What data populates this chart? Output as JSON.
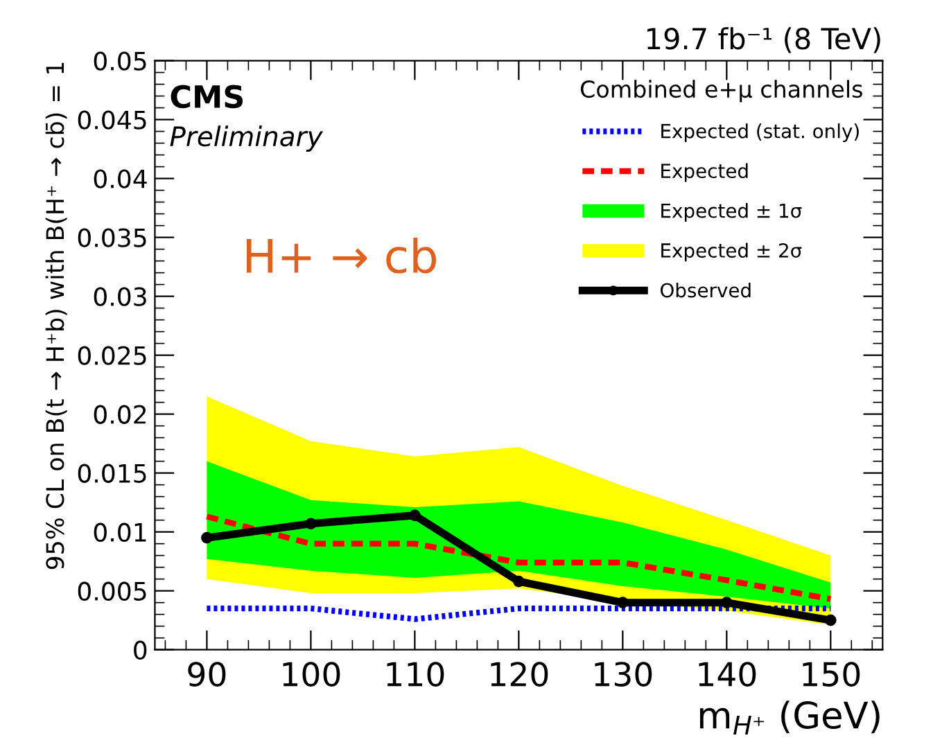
{
  "chart_data": {
    "type": "line",
    "title": "19.7 fb⁻¹ (8 TeV)",
    "xlabel": "m$_{H⁺}$ (GeV)",
    "ylabel": "95% CL on B(t → H⁺b) with B(H⁺ → cb̄) = 1",
    "legend_title": "Combined e+μ channels",
    "annotations": [
      "CMS",
      "Preliminary",
      "H+ → cb"
    ],
    "x": [
      90,
      100,
      110,
      120,
      130,
      140,
      150
    ],
    "series": [
      {
        "name": "Expected (stat. only)",
        "color": "#0000ff",
        "line_style": "dotted",
        "marker": "none",
        "values": [
          0.0035,
          0.0035,
          0.0026,
          0.0035,
          0.0035,
          0.0035,
          0.0035
        ]
      },
      {
        "name": "Expected",
        "color": "#ff0000",
        "line_style": "dashed",
        "marker": "none",
        "values": [
          0.0113,
          0.009,
          0.009,
          0.0074,
          0.0074,
          0.0059,
          0.0043
        ]
      },
      {
        "name": "Expected ± 1σ",
        "color": "#00ff00",
        "values": [
          null,
          null,
          null,
          null,
          null,
          null,
          null
        ],
        "lower": [
          0.0077,
          0.0067,
          0.0061,
          0.0067,
          0.0054,
          0.0045,
          0.0035
        ],
        "upper": [
          0.016,
          0.0127,
          0.0121,
          0.0126,
          0.0108,
          0.0085,
          0.0057
        ]
      },
      {
        "name": "Expected ± 2σ",
        "color": "#ffff00",
        "values": [
          null,
          null,
          null,
          null,
          null,
          null,
          null
        ],
        "lower": [
          0.006,
          0.0048,
          0.0048,
          0.0052,
          0.0041,
          0.0033,
          0.0021
        ],
        "upper": [
          0.0215,
          0.0177,
          0.0164,
          0.0172,
          0.0139,
          0.011,
          0.008
        ]
      },
      {
        "name": "Observed",
        "color": "#000000",
        "line_style": "solid",
        "marker": "circle",
        "values": [
          0.0095,
          0.0107,
          0.0114,
          0.0058,
          0.004,
          0.004,
          0.0025
        ]
      }
    ],
    "xlim": [
      85,
      155
    ],
    "xticks": [
      90,
      100,
      110,
      120,
      130,
      140,
      150
    ],
    "ylim": [
      0,
      0.05
    ],
    "yticks": [
      {
        "value": 0,
        "label": "0"
      },
      0.005,
      0.01,
      0.015,
      0.02,
      0.025,
      0.03,
      0.035,
      0.04,
      0.045,
      0.05
    ],
    "grid": false,
    "legend": "top right"
  }
}
